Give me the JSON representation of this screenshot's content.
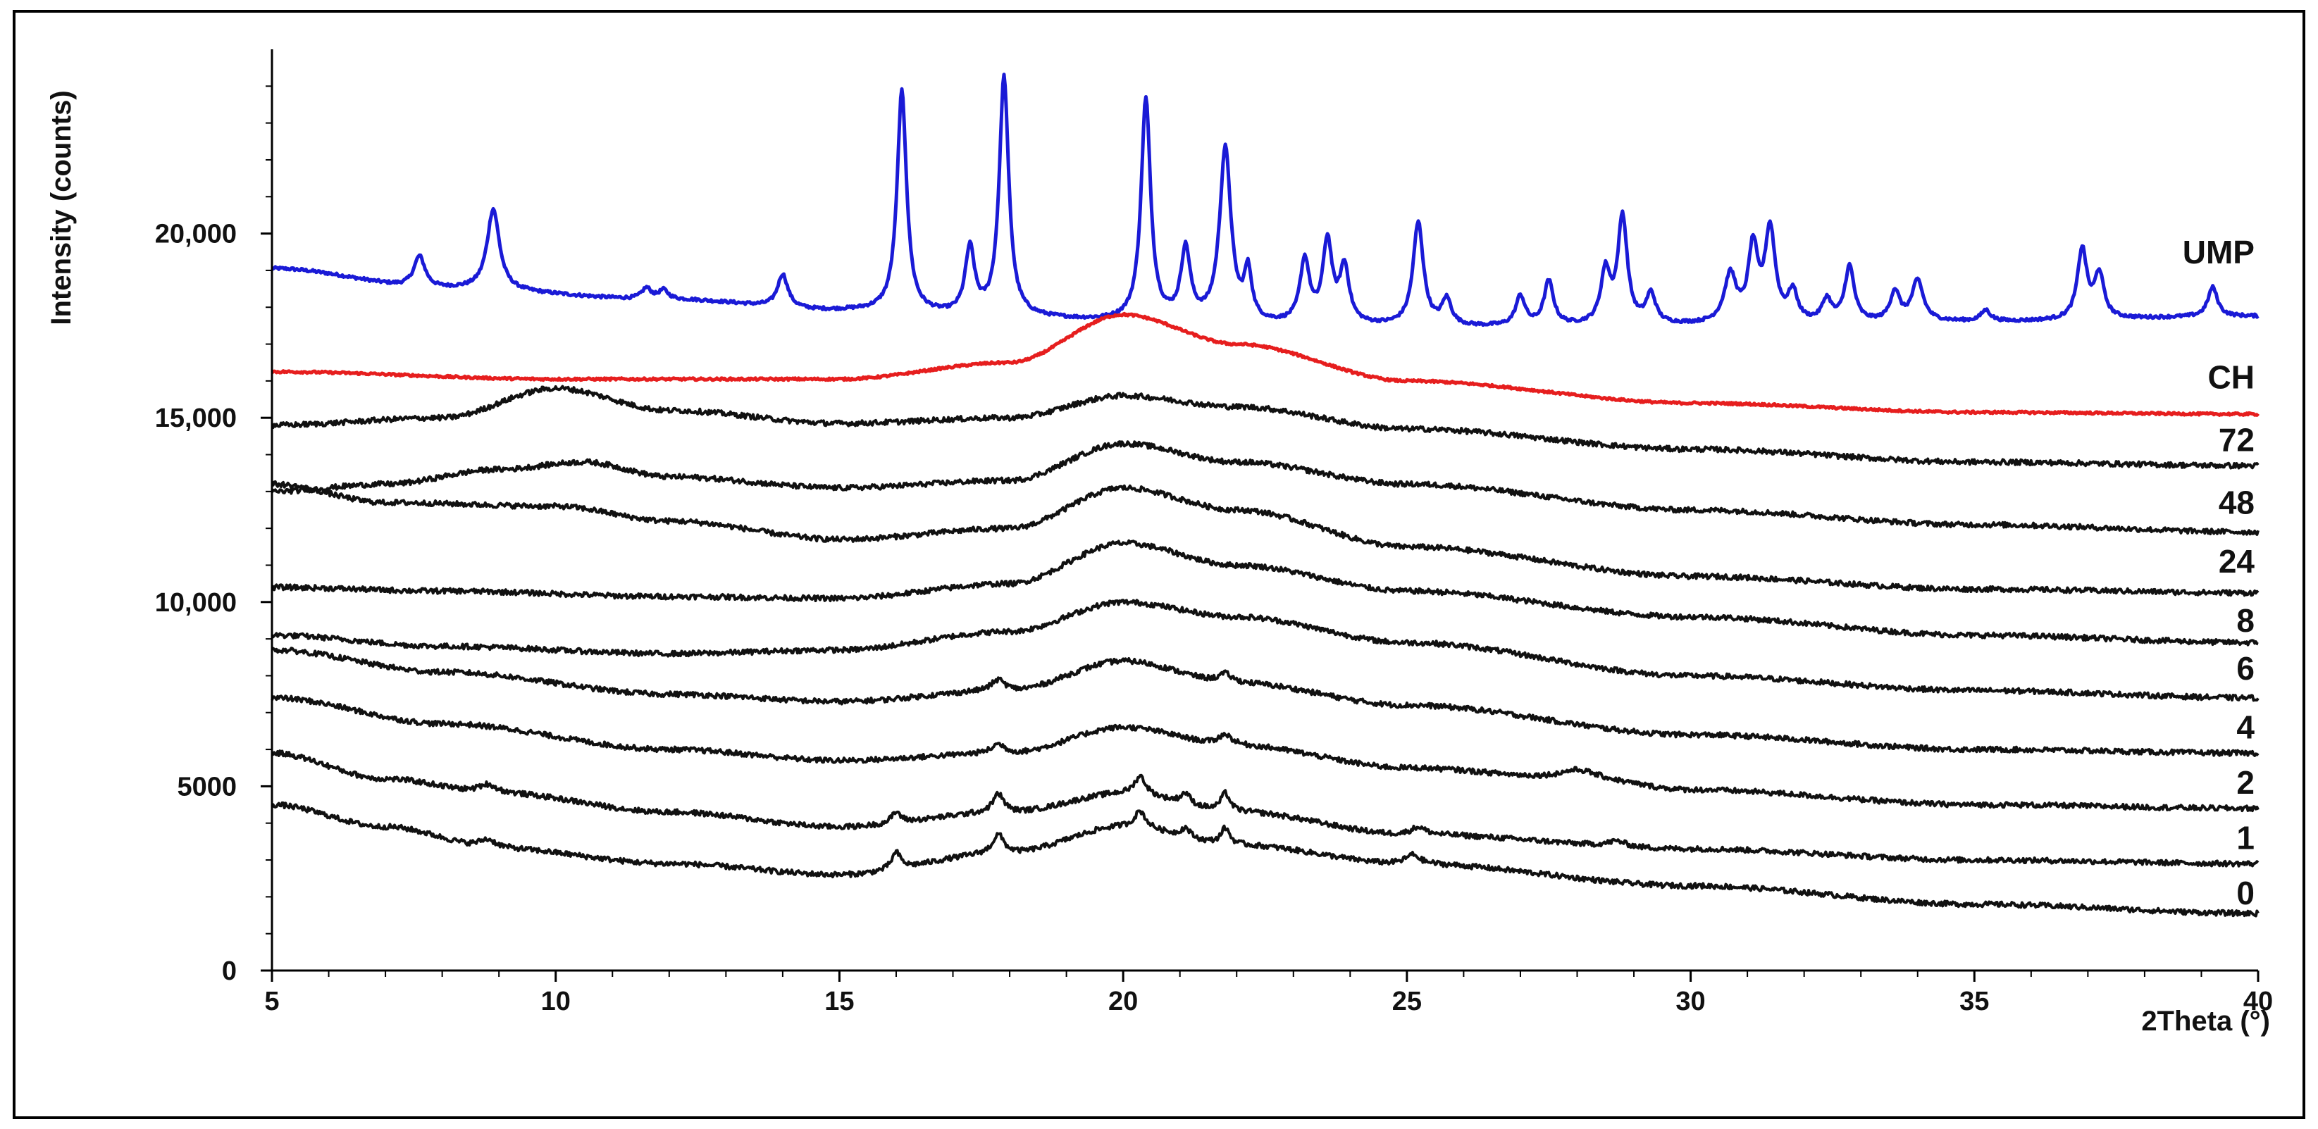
{
  "chart_data": {
    "type": "line",
    "title": "",
    "xlabel": "2Theta (°)",
    "ylabel": "Intensity (counts)",
    "xlim": [
      5,
      40
    ],
    "ylim": [
      0,
      25000
    ],
    "x_ticks": [
      {
        "value": 5,
        "label": "5"
      },
      {
        "value": 10,
        "label": "10"
      },
      {
        "value": 15,
        "label": "15"
      },
      {
        "value": 20,
        "label": "20"
      },
      {
        "value": 25,
        "label": "25"
      },
      {
        "value": 30,
        "label": "30"
      },
      {
        "value": 35,
        "label": "35"
      },
      {
        "value": 40,
        "label": "40"
      }
    ],
    "y_ticks": [
      {
        "value": 0,
        "label": "0"
      },
      {
        "value": 5000,
        "label": "5000"
      },
      {
        "value": 10000,
        "label": "10,000"
      },
      {
        "value": 15000,
        "label": "15,000"
      },
      {
        "value": 20000,
        "label": "20,000"
      }
    ],
    "grid": false,
    "legend": "inline labels at right end of each trace",
    "series": [
      {
        "name": "UMP",
        "color": "#1a1ad6",
        "label_y": 19500,
        "noise": 40,
        "base": [
          [
            5,
            19050
          ],
          [
            8,
            18500
          ],
          [
            12,
            18200
          ],
          [
            15,
            17900
          ],
          [
            18,
            17700
          ],
          [
            20,
            17600
          ],
          [
            23,
            17500
          ],
          [
            26,
            17450
          ],
          [
            30,
            17500
          ],
          [
            35,
            17600
          ],
          [
            40,
            17750
          ]
        ],
        "peaks": [
          [
            7.6,
            850,
            0.12
          ],
          [
            8.9,
            2200,
            0.13
          ],
          [
            11.6,
            300,
            0.1
          ],
          [
            11.9,
            250,
            0.1
          ],
          [
            14.0,
            900,
            0.11
          ],
          [
            16.1,
            6000,
            0.1
          ],
          [
            17.3,
            1800,
            0.1
          ],
          [
            17.9,
            6500,
            0.1
          ],
          [
            20.4,
            6000,
            0.1
          ],
          [
            21.1,
            1900,
            0.1
          ],
          [
            21.8,
            4700,
            0.12
          ],
          [
            22.2,
            1300,
            0.08
          ],
          [
            23.2,
            1700,
            0.1
          ],
          [
            23.6,
            2200,
            0.1
          ],
          [
            23.9,
            1500,
            0.1
          ],
          [
            25.2,
            2800,
            0.11
          ],
          [
            25.7,
            700,
            0.1
          ],
          [
            27.0,
            800,
            0.1
          ],
          [
            27.5,
            1200,
            0.1
          ],
          [
            28.5,
            1400,
            0.1
          ],
          [
            28.8,
            2900,
            0.1
          ],
          [
            29.3,
            800,
            0.1
          ],
          [
            30.7,
            1300,
            0.13
          ],
          [
            31.1,
            2000,
            0.1
          ],
          [
            31.4,
            2500,
            0.11
          ],
          [
            31.8,
            800,
            0.1
          ],
          [
            32.4,
            600,
            0.1
          ],
          [
            32.8,
            1500,
            0.1
          ],
          [
            33.6,
            800,
            0.1
          ],
          [
            34.0,
            1100,
            0.12
          ],
          [
            35.2,
            300,
            0.1
          ],
          [
            36.9,
            1900,
            0.1
          ],
          [
            37.2,
            1200,
            0.1
          ],
          [
            39.2,
            800,
            0.1
          ]
        ]
      },
      {
        "name": "CH",
        "color": "#e61e1e",
        "label_y": 16100,
        "noise": 30,
        "base": [
          [
            5,
            16250
          ],
          [
            10,
            16050
          ],
          [
            15,
            16050
          ],
          [
            18,
            16500
          ],
          [
            20,
            17800
          ],
          [
            22,
            17000
          ],
          [
            25,
            16000
          ],
          [
            30,
            15400
          ],
          [
            35,
            15150
          ],
          [
            40,
            15100
          ]
        ],
        "peaks": []
      },
      {
        "name": "72",
        "color": "#111111",
        "label_y": 14400,
        "noise": 70,
        "base": [
          [
            5,
            14800
          ],
          [
            8,
            15000
          ],
          [
            10,
            15800
          ],
          [
            12,
            15200
          ],
          [
            15,
            14850
          ],
          [
            18,
            15000
          ],
          [
            20,
            15600
          ],
          [
            22,
            15300
          ],
          [
            25,
            14700
          ],
          [
            30,
            14150
          ],
          [
            35,
            13800
          ],
          [
            40,
            13700
          ]
        ],
        "peaks": []
      },
      {
        "name": "48",
        "color": "#111111",
        "label_y": 12700,
        "noise": 70,
        "base": [
          [
            5,
            13000
          ],
          [
            7,
            13200
          ],
          [
            9,
            13600
          ],
          [
            10.5,
            13800
          ],
          [
            12,
            13400
          ],
          [
            15,
            13100
          ],
          [
            18,
            13300
          ],
          [
            20,
            14300
          ],
          [
            22,
            13800
          ],
          [
            25,
            13200
          ],
          [
            30,
            12500
          ],
          [
            35,
            12100
          ],
          [
            40,
            11900
          ]
        ],
        "peaks": []
      },
      {
        "name": "24",
        "color": "#111111",
        "label_y": 11100,
        "noise": 70,
        "base": [
          [
            5,
            13200
          ],
          [
            7,
            12700
          ],
          [
            10,
            12600
          ],
          [
            12,
            12200
          ],
          [
            15,
            11700
          ],
          [
            18,
            12000
          ],
          [
            20,
            13100
          ],
          [
            22,
            12500
          ],
          [
            25,
            11500
          ],
          [
            30,
            10700
          ],
          [
            35,
            10350
          ],
          [
            40,
            10250
          ]
        ],
        "peaks": []
      },
      {
        "name": "8",
        "color": "#111111",
        "label_y": 9500,
        "noise": 70,
        "base": [
          [
            5,
            10400
          ],
          [
            8,
            10300
          ],
          [
            12,
            10150
          ],
          [
            15,
            10100
          ],
          [
            18,
            10500
          ],
          [
            20,
            11600
          ],
          [
            22,
            11000
          ],
          [
            25,
            10300
          ],
          [
            30,
            9600
          ],
          [
            35,
            9100
          ],
          [
            40,
            8900
          ]
        ],
        "peaks": []
      },
      {
        "name": "6",
        "color": "#111111",
        "label_y": 8200,
        "noise": 70,
        "base": [
          [
            5,
            9100
          ],
          [
            8,
            8800
          ],
          [
            12,
            8600
          ],
          [
            15,
            8700
          ],
          [
            18,
            9200
          ],
          [
            20,
            10000
          ],
          [
            22,
            9600
          ],
          [
            25,
            8900
          ],
          [
            30,
            8000
          ],
          [
            35,
            7600
          ],
          [
            40,
            7400
          ]
        ],
        "peaks": []
      },
      {
        "name": "4",
        "color": "#111111",
        "label_y": 6600,
        "noise": 70,
        "base": [
          [
            5,
            8700
          ],
          [
            8,
            8100
          ],
          [
            12,
            7500
          ],
          [
            15,
            7300
          ],
          [
            18,
            7600
          ],
          [
            20,
            8400
          ],
          [
            22,
            7800
          ],
          [
            25,
            7200
          ],
          [
            30,
            6400
          ],
          [
            35,
            6000
          ],
          [
            40,
            5900
          ]
        ],
        "peaks": [
          [
            17.8,
            300,
            0.15
          ],
          [
            21.8,
            250,
            0.15
          ]
        ]
      },
      {
        "name": "2",
        "color": "#111111",
        "label_y": 5100,
        "noise": 70,
        "base": [
          [
            5,
            7400
          ],
          [
            8,
            6700
          ],
          [
            12,
            6000
          ],
          [
            15,
            5700
          ],
          [
            18,
            5900
          ],
          [
            20,
            6600
          ],
          [
            22,
            6100
          ],
          [
            25,
            5500
          ],
          [
            28,
            5200
          ],
          [
            30,
            4900
          ],
          [
            35,
            4500
          ],
          [
            40,
            4400
          ]
        ],
        "peaks": [
          [
            17.8,
            250,
            0.15
          ],
          [
            21.8,
            300,
            0.15
          ],
          [
            28,
            250,
            0.4
          ]
        ]
      },
      {
        "name": "1",
        "color": "#111111",
        "label_y": 3600,
        "noise": 70,
        "base": [
          [
            5,
            5900
          ],
          [
            7,
            5200
          ],
          [
            9,
            4800
          ],
          [
            12,
            4300
          ],
          [
            15,
            3900
          ],
          [
            18,
            4300
          ],
          [
            20,
            4800
          ],
          [
            22,
            4300
          ],
          [
            25,
            3700
          ],
          [
            30,
            3300
          ],
          [
            35,
            3000
          ],
          [
            40,
            2900
          ]
        ],
        "peaks": [
          [
            8.8,
            250,
            0.2
          ],
          [
            16.0,
            300,
            0.1
          ],
          [
            17.8,
            500,
            0.12
          ],
          [
            20.3,
            500,
            0.12
          ],
          [
            21.1,
            300,
            0.1
          ],
          [
            21.8,
            500,
            0.1
          ],
          [
            25.2,
            200,
            0.15
          ],
          [
            28.7,
            150,
            0.2
          ]
        ]
      },
      {
        "name": "0",
        "color": "#111111",
        "label_y": 2100,
        "noise": 70,
        "base": [
          [
            5,
            4500
          ],
          [
            7,
            3900
          ],
          [
            9,
            3300
          ],
          [
            12,
            2900
          ],
          [
            15,
            2600
          ],
          [
            18,
            3200
          ],
          [
            20,
            3900
          ],
          [
            22,
            3400
          ],
          [
            25,
            2900
          ],
          [
            30,
            2300
          ],
          [
            35,
            1800
          ],
          [
            40,
            1550
          ]
        ],
        "peaks": [
          [
            8.8,
            250,
            0.2
          ],
          [
            16.0,
            450,
            0.1
          ],
          [
            17.8,
            500,
            0.12
          ],
          [
            20.3,
            450,
            0.12
          ],
          [
            21.1,
            250,
            0.1
          ],
          [
            21.8,
            450,
            0.1
          ],
          [
            25.1,
            250,
            0.15
          ]
        ]
      }
    ]
  }
}
